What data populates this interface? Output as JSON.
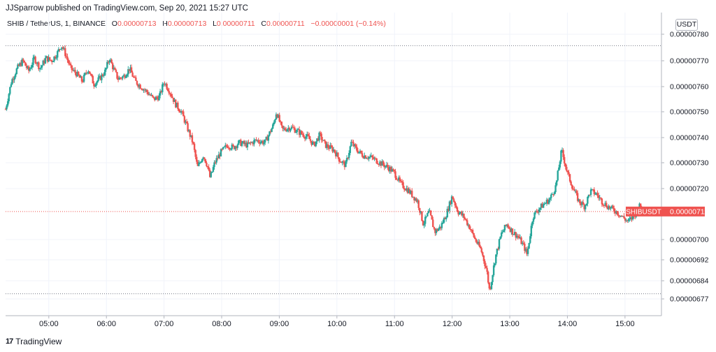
{
  "header": {
    "publisher": "JJSparrow published on TradingView.com, Sep 20, 2021 15:27 UTC"
  },
  "legend": {
    "symbol": "SHIB / TetherUS, 1, BINANCE",
    "o_label": "O",
    "o_value": "0.00000713",
    "h_label": "H",
    "h_value": "0.00000713",
    "l_label": "L",
    "l_value": "0.00000711",
    "c_label": "C",
    "c_value": "0.00000711",
    "change": "−0.00000001 (−0.14%)"
  },
  "price_axis": {
    "unit": "USDT"
  },
  "last_price": {
    "ticker": "SHIBUSDT",
    "value": "0.00000711"
  },
  "footer": {
    "brand": "TradingView",
    "logo_text": "17"
  },
  "colors": {
    "up": "#26a69a",
    "down": "#ef5350",
    "grid": "#f0f3fa",
    "axis_text": "#131722"
  },
  "chart_data": {
    "type": "candlestick",
    "title": "SHIB / TetherUS, 1, BINANCE",
    "x_ticks": [
      "05:00",
      "06:00",
      "07:00",
      "08:00",
      "09:00",
      "10:00",
      "11:00",
      "12:00",
      "13:00",
      "14:00",
      "15:00"
    ],
    "y_ticks": [
      "0.00000780",
      "0.00000770",
      "0.00000760",
      "0.00000750",
      "0.00000740",
      "0.00000730",
      "0.00000720",
      "0.00000700",
      "0.00000692",
      "0.00000684",
      "0.00000677"
    ],
    "y_tick_values": [
      7.8,
      7.7,
      7.6,
      7.5,
      7.4,
      7.3,
      7.2,
      7.0,
      6.92,
      6.84,
      6.77
    ],
    "y_unit_scale": "1e-6",
    "x_range_hours": [
      4.25,
      15.56
    ],
    "high_line": 7.757,
    "low_line": 6.79,
    "last_value": 7.11,
    "price_path": [
      [
        4.25,
        7.51
      ],
      [
        4.35,
        7.62
      ],
      [
        4.45,
        7.67
      ],
      [
        4.55,
        7.7
      ],
      [
        4.65,
        7.66
      ],
      [
        4.75,
        7.71
      ],
      [
        4.85,
        7.67
      ],
      [
        4.95,
        7.71
      ],
      [
        5.05,
        7.7
      ],
      [
        5.15,
        7.73
      ],
      [
        5.22,
        7.76
      ],
      [
        5.28,
        7.73
      ],
      [
        5.38,
        7.67
      ],
      [
        5.48,
        7.65
      ],
      [
        5.58,
        7.62
      ],
      [
        5.68,
        7.67
      ],
      [
        5.78,
        7.61
      ],
      [
        5.88,
        7.63
      ],
      [
        5.98,
        7.66
      ],
      [
        6.05,
        7.71
      ],
      [
        6.12,
        7.67
      ],
      [
        6.2,
        7.63
      ],
      [
        6.3,
        7.64
      ],
      [
        6.4,
        7.67
      ],
      [
        6.5,
        7.62
      ],
      [
        6.6,
        7.6
      ],
      [
        6.7,
        7.58
      ],
      [
        6.82,
        7.55
      ],
      [
        6.92,
        7.56
      ],
      [
        7.0,
        7.62
      ],
      [
        7.1,
        7.58
      ],
      [
        7.2,
        7.53
      ],
      [
        7.3,
        7.5
      ],
      [
        7.4,
        7.44
      ],
      [
        7.5,
        7.38
      ],
      [
        7.58,
        7.28
      ],
      [
        7.68,
        7.33
      ],
      [
        7.75,
        7.29
      ],
      [
        7.8,
        7.24
      ],
      [
        7.88,
        7.3
      ],
      [
        7.98,
        7.34
      ],
      [
        8.1,
        7.37
      ],
      [
        8.2,
        7.36
      ],
      [
        8.3,
        7.38
      ],
      [
        8.45,
        7.37
      ],
      [
        8.6,
        7.39
      ],
      [
        8.75,
        7.38
      ],
      [
        8.9,
        7.45
      ],
      [
        8.95,
        7.5
      ],
      [
        9.05,
        7.43
      ],
      [
        9.2,
        7.44
      ],
      [
        9.35,
        7.42
      ],
      [
        9.5,
        7.4
      ],
      [
        9.6,
        7.37
      ],
      [
        9.7,
        7.41
      ],
      [
        9.8,
        7.37
      ],
      [
        9.95,
        7.35
      ],
      [
        10.05,
        7.31
      ],
      [
        10.15,
        7.29
      ],
      [
        10.25,
        7.38
      ],
      [
        10.35,
        7.35
      ],
      [
        10.45,
        7.33
      ],
      [
        10.6,
        7.32
      ],
      [
        10.75,
        7.3
      ],
      [
        10.9,
        7.28
      ],
      [
        11.0,
        7.26
      ],
      [
        11.1,
        7.22
      ],
      [
        11.25,
        7.19
      ],
      [
        11.4,
        7.15
      ],
      [
        11.5,
        7.06
      ],
      [
        11.6,
        7.11
      ],
      [
        11.7,
        7.03
      ],
      [
        11.8,
        7.05
      ],
      [
        11.9,
        7.1
      ],
      [
        12.0,
        7.17
      ],
      [
        12.1,
        7.11
      ],
      [
        12.2,
        7.09
      ],
      [
        12.3,
        7.05
      ],
      [
        12.4,
        7.0
      ],
      [
        12.5,
        6.96
      ],
      [
        12.6,
        6.88
      ],
      [
        12.65,
        6.8
      ],
      [
        12.75,
        6.93
      ],
      [
        12.85,
        7.02
      ],
      [
        12.95,
        7.06
      ],
      [
        13.05,
        7.03
      ],
      [
        13.15,
        7.01
      ],
      [
        13.25,
        6.97
      ],
      [
        13.3,
        6.94
      ],
      [
        13.4,
        7.09
      ],
      [
        13.5,
        7.12
      ],
      [
        13.6,
        7.14
      ],
      [
        13.7,
        7.16
      ],
      [
        13.8,
        7.21
      ],
      [
        13.9,
        7.35
      ],
      [
        14.0,
        7.26
      ],
      [
        14.1,
        7.2
      ],
      [
        14.2,
        7.15
      ],
      [
        14.3,
        7.13
      ],
      [
        14.4,
        7.19
      ],
      [
        14.5,
        7.18
      ],
      [
        14.6,
        7.15
      ],
      [
        14.7,
        7.13
      ],
      [
        14.85,
        7.11
      ],
      [
        14.95,
        7.09
      ],
      [
        15.05,
        7.07
      ],
      [
        15.15,
        7.09
      ],
      [
        15.25,
        7.13
      ],
      [
        15.35,
        7.12
      ],
      [
        15.45,
        7.11
      ]
    ]
  }
}
